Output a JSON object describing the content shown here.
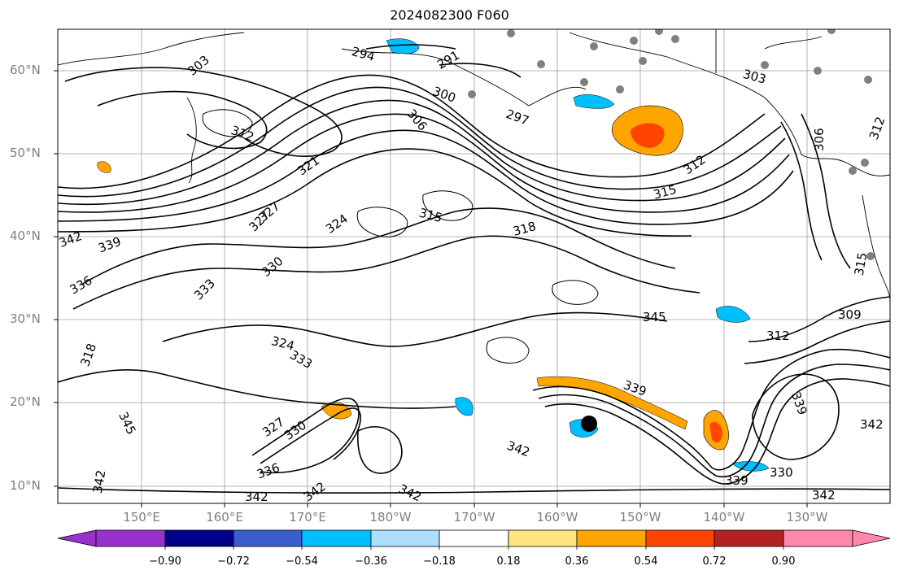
{
  "title": "2024082300 F060",
  "lat_labels": [
    "10°N",
    "20°N",
    "30°N",
    "40°N",
    "50°N",
    "60°N"
  ],
  "lon_labels": [
    "150°E",
    "160°E",
    "170°E",
    "180°W",
    "170°W",
    "160°W",
    "150°W",
    "140°W",
    "130°W"
  ],
  "contour_labels": [
    "294",
    "291",
    "303",
    "300",
    "297",
    "306",
    "312",
    "321",
    "327",
    "324",
    "315",
    "318",
    "315",
    "312",
    "306",
    "303",
    "312",
    "309",
    "312",
    "339",
    "342",
    "336",
    "333",
    "330",
    "327",
    "324",
    "333",
    "339",
    "318",
    "345",
    "342",
    "339",
    "342",
    "345",
    "327",
    "330",
    "342",
    "336",
    "342",
    "342",
    "342",
    "339",
    "342",
    "330",
    "315"
  ],
  "colorbar": {
    "labels": [
      "−0.90",
      "−0.72",
      "−0.54",
      "−0.36",
      "−0.18",
      "0.18",
      "0.36",
      "0.54",
      "0.72",
      "0.90"
    ],
    "colors": [
      "#9932cc",
      "#00008b",
      "#3a5fcd",
      "#00bfff",
      "#afdfff",
      "#ffffff",
      "#ffe680",
      "#ffa500",
      "#ff4500",
      "#b22222",
      "#ff88aa",
      "#ff88aa"
    ]
  }
}
